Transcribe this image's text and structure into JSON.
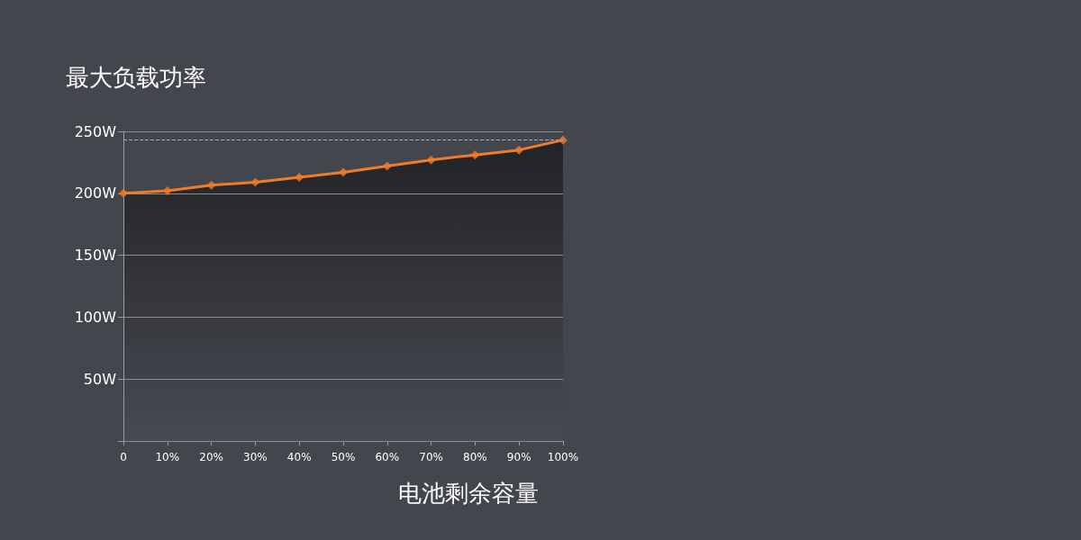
{
  "chart_data": {
    "type": "line",
    "title": "最大负载功率",
    "xlabel": "电池剩余容量",
    "categories": [
      "0",
      "10%",
      "20%",
      "30%",
      "40%",
      "50%",
      "60%",
      "70%",
      "80%",
      "90%",
      "100%"
    ],
    "series": [
      {
        "color": "#f07c2a",
        "values": [
          200,
          202,
          206.5,
          209,
          213,
          217,
          222,
          227,
          231,
          235,
          243
        ]
      }
    ],
    "ylim": [
      0,
      250
    ],
    "yticks": [
      {
        "value": 0,
        "label": null
      },
      {
        "value": 50,
        "label": "50W"
      },
      {
        "value": 100,
        "label": "100W"
      },
      {
        "value": 150,
        "label": "150W"
      },
      {
        "value": 200,
        "label": "200W"
      },
      {
        "value": 250,
        "label": "250W"
      }
    ],
    "ref_lines": [
      {
        "axis": "y",
        "value": 243,
        "color": "#aaaaaa",
        "line_style": "dashed"
      }
    ],
    "grid": "y",
    "marker": "diamond"
  }
}
